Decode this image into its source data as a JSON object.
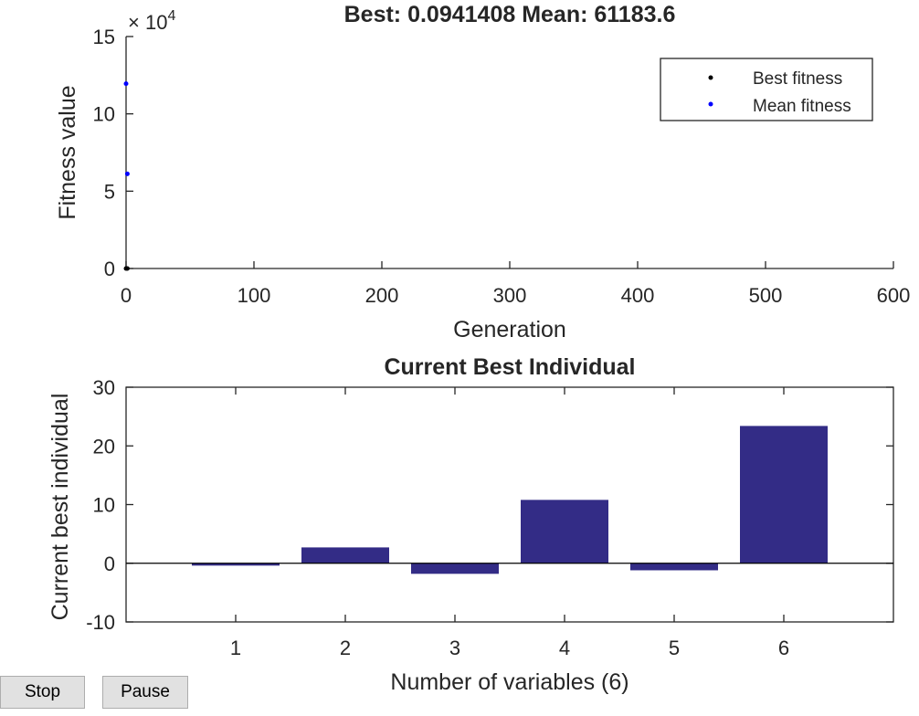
{
  "buttons": {
    "stop": "Stop",
    "pause": "Pause"
  },
  "chart_data": [
    {
      "type": "scatter",
      "title": "Best: 0.0941408 Mean: 61183.6",
      "xlabel": "Generation",
      "ylabel": "Fitness value",
      "xlim": [
        0,
        600
      ],
      "ylim": [
        0,
        150000
      ],
      "y_exponent_label": "× 10^4",
      "x_ticks": [
        "0",
        "100",
        "200",
        "300",
        "400",
        "500",
        "600"
      ],
      "y_ticks": [
        "0",
        "5",
        "10",
        "15"
      ],
      "series": [
        {
          "name": "Best fitness",
          "color": "#000000",
          "points": [
            [
              0,
              0.0941408
            ],
            [
              1,
              0.0941408
            ]
          ]
        },
        {
          "name": "Mean fitness",
          "color": "#0000ff",
          "points": [
            [
              0,
              119500
            ],
            [
              1,
              61183.6
            ]
          ]
        }
      ],
      "legend": "top-right"
    },
    {
      "type": "bar",
      "title": "Current Best Individual",
      "xlabel": "Number of variables (6)",
      "ylabel": "Current best individual",
      "categories": [
        "1",
        "2",
        "3",
        "4",
        "5",
        "6"
      ],
      "values": [
        -0.4,
        2.7,
        -1.8,
        10.8,
        -1.2,
        23.4
      ],
      "ylim": [
        -10,
        30
      ],
      "y_ticks": [
        "-10",
        "0",
        "10",
        "20",
        "30"
      ],
      "bar_color": "#332c86"
    }
  ]
}
